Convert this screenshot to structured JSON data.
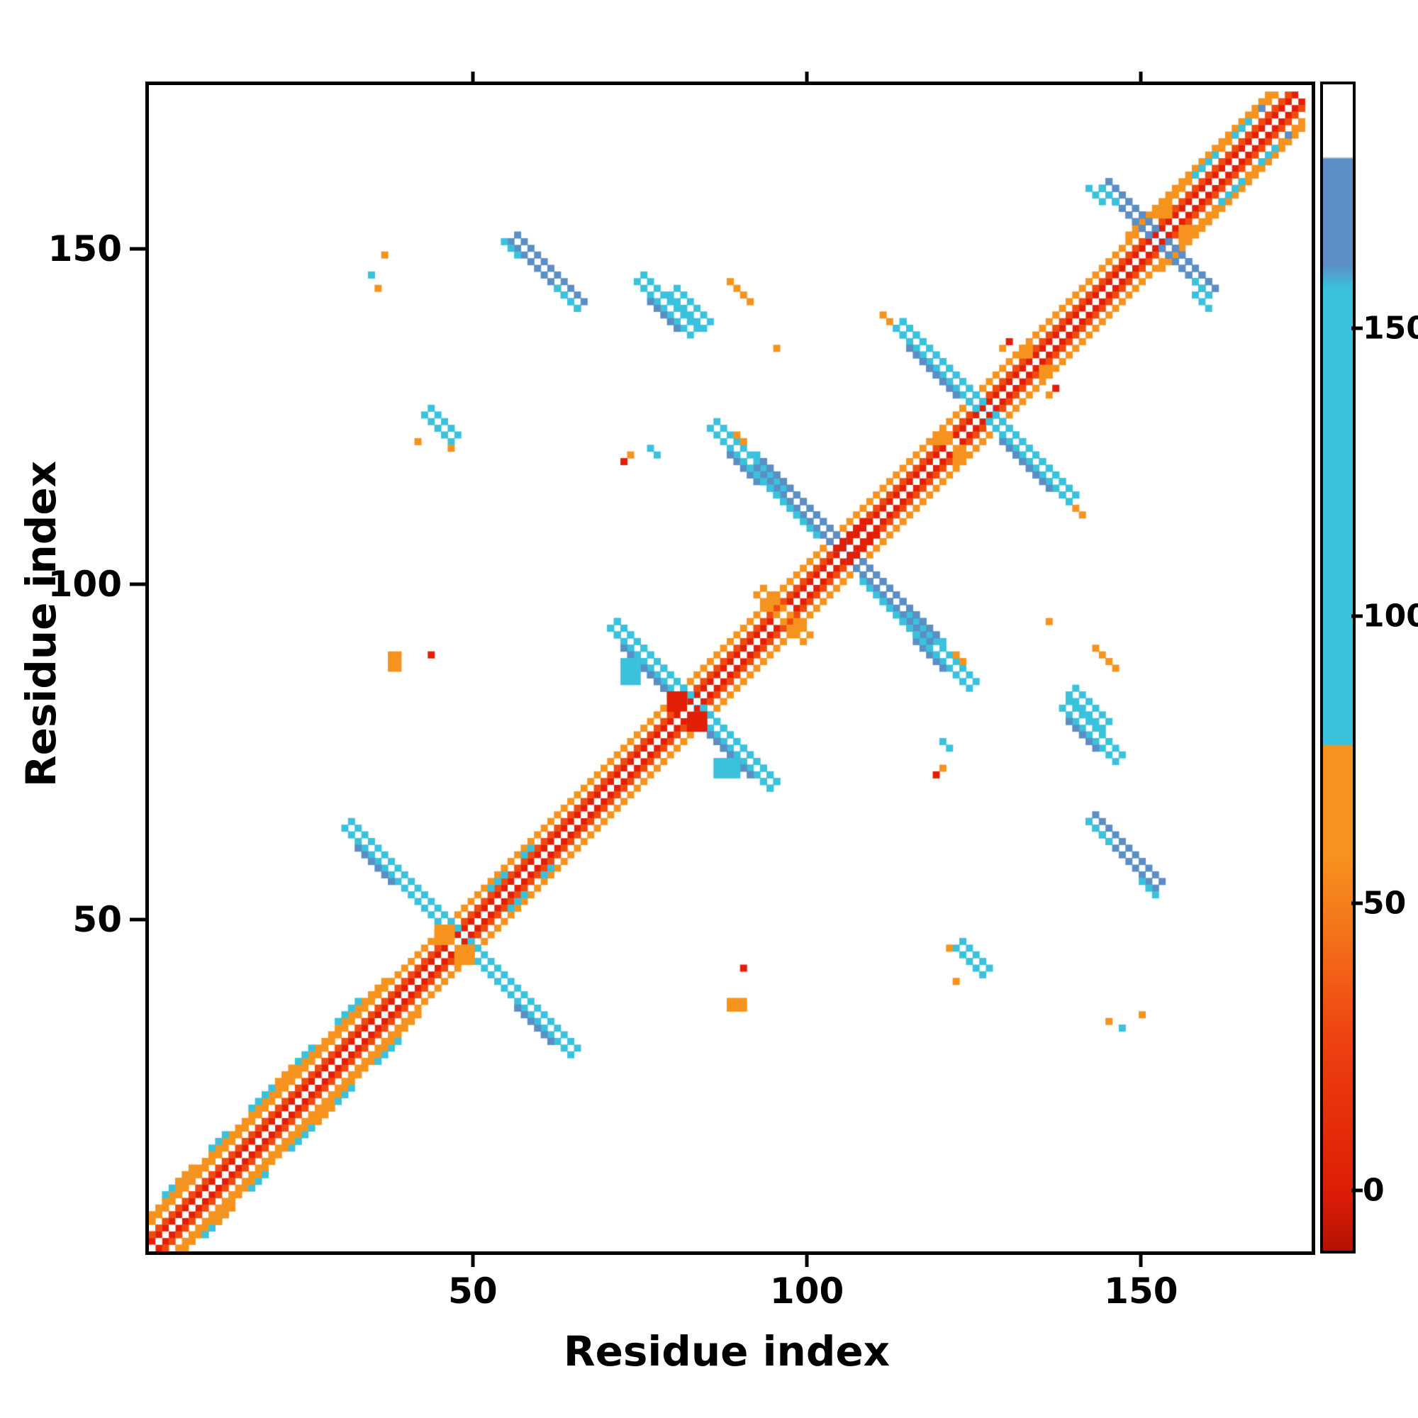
{
  "chart_data": {
    "type": "heatmap",
    "title": "",
    "xlabel": "Residue index",
    "ylabel": "Residue index",
    "xlim": [
      1,
      175
    ],
    "ylim": [
      1,
      175
    ],
    "xticks": [
      50,
      100,
      150
    ],
    "xtick_labels": [
      "50",
      "100",
      "150"
    ],
    "yticks": [
      50,
      100,
      150
    ],
    "ytick_labels": [
      "50",
      "100",
      "150"
    ],
    "grid": false,
    "matrix_size": 175,
    "background": "#ffffff",
    "diagonal": "white",
    "symmetric": true,
    "colors": {
      "red": "#e21f06",
      "orgred": "#ef4b10",
      "org": "#f6931e",
      "cyn": "#3ac2dd",
      "blu": "#5b8ec4"
    },
    "colorbar": {
      "position": "right",
      "vmin": -10,
      "vmax": 193,
      "ticks": [
        0,
        50,
        100,
        150
      ],
      "tick_labels": [
        "0",
        "50",
        "100",
        "150"
      ],
      "stops": [
        [
          0,
          "#b51204"
        ],
        [
          5,
          "#dd1d06"
        ],
        [
          18,
          "#ee4110"
        ],
        [
          28,
          "#f4761b"
        ],
        [
          34,
          "#f6931e"
        ],
        [
          43.3,
          "#f6931e"
        ],
        [
          43.4,
          "#3ac2dd"
        ],
        [
          82.5,
          "#3ac2dd"
        ],
        [
          84.5,
          "#5b8ec4"
        ],
        [
          93.6,
          "#5b8ec4"
        ],
        [
          93.8,
          "#ffffff"
        ],
        [
          100,
          "#ffffff"
        ]
      ]
    },
    "features": [
      [
        "d",
        1,
        2,
        173,
        1,
        "red"
      ],
      [
        "d",
        1,
        3,
        172,
        1,
        "orgred"
      ],
      [
        "d",
        1,
        5,
        170,
        1,
        "org"
      ],
      [
        "d",
        1,
        6,
        36,
        1,
        "org"
      ],
      [
        "d",
        148,
        153,
        22,
        1,
        "org"
      ],
      [
        "d",
        3,
        9,
        4,
        1,
        "cyn"
      ],
      [
        "d",
        10,
        16,
        3,
        1,
        "cyn"
      ],
      [
        "d",
        16,
        22,
        4,
        1,
        "cyn"
      ],
      [
        "d",
        23,
        29,
        3,
        1,
        "cyn"
      ],
      [
        "d",
        29,
        35,
        4,
        1,
        "cyn"
      ],
      [
        "d",
        5,
        11,
        3,
        1,
        "org"
      ],
      [
        "d",
        20,
        26,
        3,
        1,
        "org"
      ],
      [
        "d",
        52,
        55,
        3,
        1,
        "cyn"
      ],
      [
        "d",
        57,
        60,
        2,
        1,
        "cyn"
      ],
      [
        "d",
        158,
        162,
        4,
        1,
        "cyn"
      ],
      [
        "d",
        164,
        168,
        3,
        1,
        "cyn"
      ],
      [
        "c",
        168,
        172,
        0,
        0,
        "blu"
      ],
      [
        "a",
        30,
        64,
        18,
        2,
        "cyn"
      ],
      [
        "a",
        32,
        61,
        6,
        1,
        "blu"
      ],
      [
        "a",
        55,
        152,
        11,
        2,
        "blu"
      ],
      [
        "a",
        54,
        152,
        3,
        1,
        "cyn"
      ],
      [
        "a",
        62,
        145,
        4,
        1,
        "cyn"
      ],
      [
        "a",
        74,
        146,
        9,
        2,
        "cyn"
      ],
      [
        "a",
        76,
        143,
        5,
        1,
        "blu"
      ],
      [
        "a",
        113,
        139,
        27,
        2,
        "cyn"
      ],
      [
        "a",
        115,
        136,
        6,
        1,
        "blu"
      ],
      [
        "a",
        129,
        122,
        6,
        1,
        "blu"
      ],
      [
        "a",
        42,
        126,
        5,
        2,
        "cyn"
      ],
      [
        "a",
        85,
        124,
        11,
        2,
        "cyn"
      ],
      [
        "a",
        88,
        120,
        5,
        1,
        "blu"
      ],
      [
        "a",
        92,
        118,
        27,
        2,
        "blu"
      ],
      [
        "a",
        90,
        119,
        9,
        1,
        "cyn"
      ],
      [
        "a",
        108,
        101,
        9,
        1,
        "cyn"
      ],
      [
        "a",
        70,
        94,
        25,
        2,
        "cyn"
      ],
      [
        "a",
        72,
        91,
        8,
        1,
        "blu"
      ],
      [
        "a",
        84,
        79,
        6,
        1,
        "blu"
      ],
      [
        "r",
        72,
        86,
        3,
        4,
        "cyn"
      ],
      [
        "a",
        144,
        160,
        17,
        2,
        "blu"
      ],
      [
        "a",
        142,
        160,
        3,
        1,
        "cyn"
      ],
      [
        "a",
        158,
        146,
        3,
        1,
        "cyn"
      ],
      [
        "a",
        139,
        84,
        6,
        2,
        "cyn"
      ],
      [
        "r",
        79,
        82,
        3,
        3,
        "red"
      ],
      [
        "r",
        44,
        47,
        3,
        3,
        "org"
      ],
      [
        "a",
        92,
        99,
        5,
        2,
        "org"
      ],
      [
        "r",
        119,
        122,
        3,
        2,
        "org"
      ],
      [
        "r",
        132,
        135,
        2,
        2,
        "org"
      ],
      [
        "d",
        104,
        106,
        5,
        1,
        "red"
      ],
      [
        "r",
        153,
        156,
        2,
        2,
        "org"
      ],
      [
        "c",
        41,
        122,
        0,
        0,
        "org"
      ],
      [
        "c",
        46,
        121,
        0,
        0,
        "org"
      ],
      [
        "c",
        36,
        150,
        0,
        0,
        "org"
      ],
      [
        "c",
        34,
        147,
        0,
        0,
        "cyn"
      ],
      [
        "a",
        88,
        146,
        4,
        1,
        "org"
      ],
      [
        "c",
        95,
        136,
        0,
        0,
        "org"
      ],
      [
        "c",
        111,
        141,
        0,
        0,
        "org"
      ],
      [
        "c",
        112,
        140,
        0,
        0,
        "org"
      ],
      [
        "c",
        72,
        119,
        0,
        0,
        "red"
      ],
      [
        "c",
        73,
        120,
        0,
        0,
        "org"
      ],
      [
        "c",
        76,
        121,
        0,
        0,
        "cyn"
      ],
      [
        "c",
        77,
        120,
        0,
        0,
        "cyn"
      ],
      [
        "r",
        37,
        88,
        2,
        3,
        "org"
      ],
      [
        "c",
        43,
        90,
        0,
        0,
        "red"
      ],
      [
        "c",
        122,
        90,
        0,
        0,
        "org"
      ],
      [
        "c",
        123,
        89,
        0,
        0,
        "org"
      ],
      [
        "c",
        120,
        92,
        0,
        0,
        "cyn"
      ],
      [
        "c",
        35,
        145,
        0,
        0,
        "org"
      ],
      [
        "c",
        130,
        137,
        0,
        0,
        "red"
      ],
      [
        "c",
        129,
        136,
        0,
        0,
        "org"
      ]
    ]
  }
}
